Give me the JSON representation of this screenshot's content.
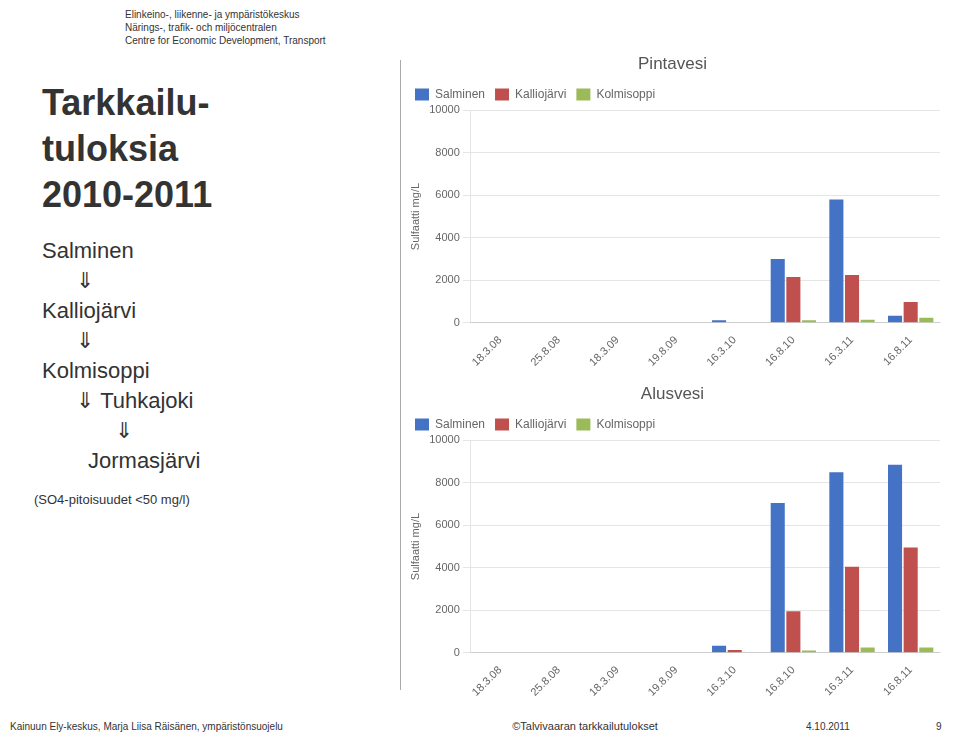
{
  "title": [
    "Tarkkailu-",
    "tuloksia",
    "2010-2011"
  ],
  "subtitle": "(SO4-pitoisuudet <50 mg/l)",
  "header": [
    "Elinkeino-, liikenne- ja ympäristökeskus",
    "Närings-, trafik- och miljöcentralen",
    "Centre for Economic Development, Transport"
  ],
  "annotations": [
    "Salminen",
    "⇓",
    "Kalliojärvi",
    "⇓",
    "Kolmisoppi",
    "⇓ Tuhkajoki",
    "⇓",
    "Jormasjärvi"
  ],
  "footer": [
    "Kainuun Ely-keskus, Marja Liisa Räisänen, ympäristönsuojelu",
    "©Talvivaaran tarkkailutulokset",
    "4.10.2011",
    "9"
  ],
  "chart_data": [
    {
      "type": "bar",
      "title": "Pintavesi",
      "ylabel": "Sulfaatti mg/L",
      "categories": [
        "18.3.08",
        "25.8.08",
        "18.3.09",
        "19.8.09",
        "16.3.10",
        "16.8.10",
        "16.3.11",
        "16.8.11"
      ],
      "series": [
        {
          "name": "Salminen",
          "color": "#4472C4",
          "values": [
            0,
            0,
            0,
            0,
            120,
            3000,
            5800,
            330
          ]
        },
        {
          "name": "Kalliojärvi",
          "color": "#C0504D",
          "values": [
            0,
            0,
            0,
            0,
            0,
            2150,
            2250,
            970
          ]
        },
        {
          "name": "Kolmisoppi",
          "color": "#9BBB59",
          "values": [
            0,
            0,
            0,
            0,
            0,
            120,
            140,
            230
          ]
        }
      ],
      "ylim": [
        0,
        10000
      ],
      "yticks": [
        0,
        2000,
        4000,
        6000,
        8000,
        10000
      ],
      "grid": true,
      "legend": "upper left"
    },
    {
      "type": "bar",
      "title": "Alusvesi",
      "ylabel": "Sulfaatti mg/L",
      "categories": [
        "18.3.08",
        "25.8.08",
        "18.3.09",
        "19.8.09",
        "16.3.10",
        "16.8.10",
        "16.3.11",
        "16.8.11"
      ],
      "series": [
        {
          "name": "Salminen",
          "color": "#4472C4",
          "values": [
            0,
            0,
            0,
            0,
            330,
            7050,
            8500,
            8850
          ]
        },
        {
          "name": "Kalliojärvi",
          "color": "#C0504D",
          "values": [
            0,
            0,
            0,
            0,
            130,
            1950,
            4050,
            4950
          ]
        },
        {
          "name": "Kolmisoppi",
          "color": "#9BBB59",
          "values": [
            0,
            0,
            0,
            0,
            0,
            100,
            250,
            250
          ]
        }
      ],
      "ylim": [
        0,
        10000
      ],
      "yticks": [
        0,
        2000,
        4000,
        6000,
        8000,
        10000
      ],
      "grid": true,
      "legend": "upper left"
    }
  ]
}
